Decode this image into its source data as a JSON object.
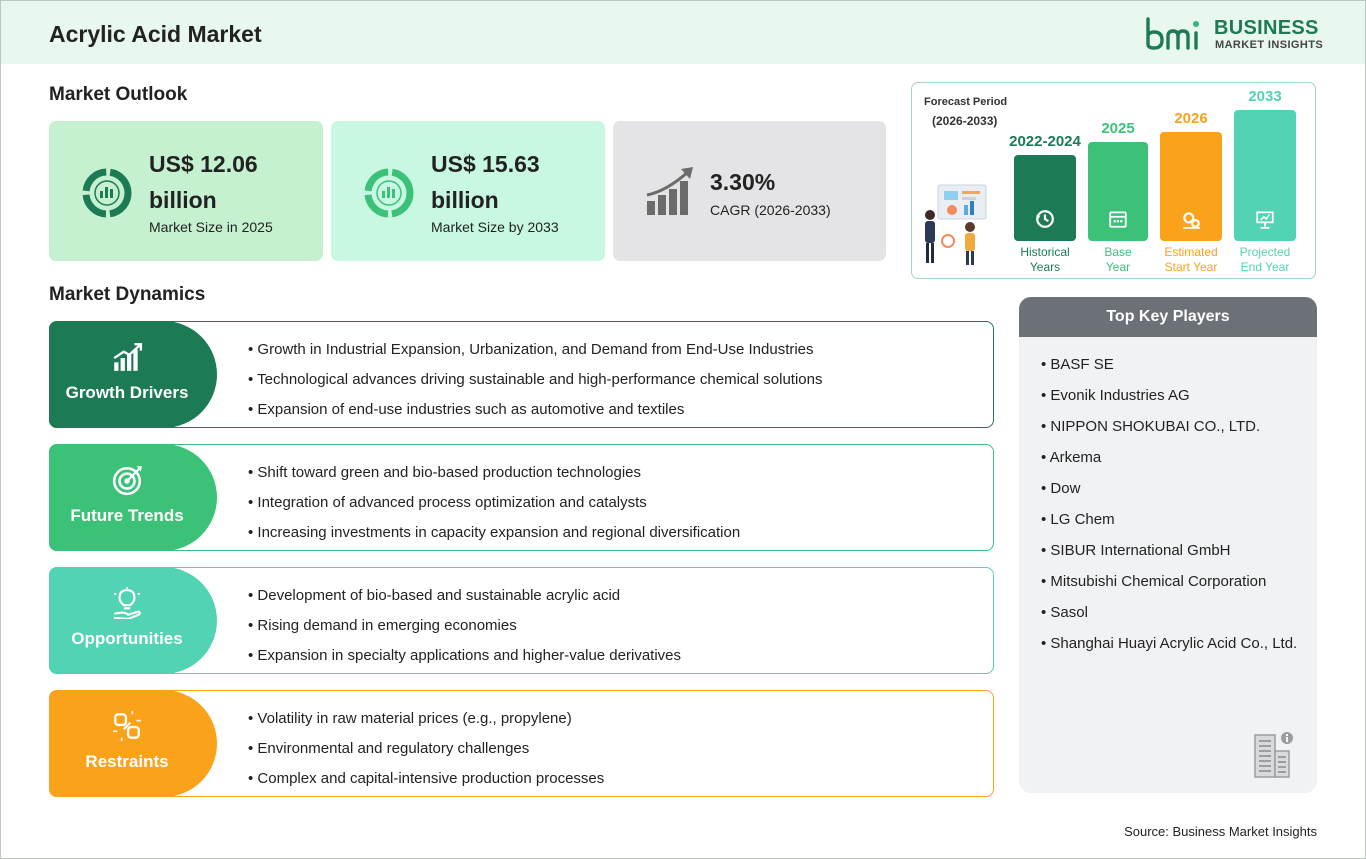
{
  "header": {
    "title": "Acrylic Acid Market",
    "logo_icon": "bmi-logo-icon",
    "logo_line1": "BUSINESS",
    "logo_line2": "MARKET INSIGHTS"
  },
  "outlook": {
    "title": "Market Outlook",
    "cards": [
      {
        "value_line1": "US$ 12.06",
        "value_line2": "billion",
        "label": "Market Size in 2025",
        "icon": "donut-chart-icon",
        "bg": "#c6f1d0"
      },
      {
        "value_line1": "US$ 15.63",
        "value_line2": "billion",
        "label": "Market Size by 2033",
        "icon": "donut-chart-icon",
        "bg": "#c8f8e1"
      },
      {
        "value_line1": "3.30%",
        "label": "CAGR (2026-2033)",
        "icon": "growth-bar-chart-icon",
        "bg": "#e4e4e6"
      }
    ]
  },
  "forecast": {
    "title": "Forecast Period",
    "subtitle": "(2026-2033)",
    "periods": [
      {
        "year": "2022-2024",
        "label_line1": "Historical",
        "label_line2": "Years",
        "color": "#1c7a55",
        "icon": "history-clock-icon"
      },
      {
        "year": "2025",
        "label_line1": "Base",
        "label_line2": "Year",
        "color": "#3cc278",
        "icon": "calendar-icon"
      },
      {
        "year": "2026",
        "label_line1": "Estimated",
        "label_line2": "Start Year",
        "color": "#fba21b",
        "icon": "gears-icon"
      },
      {
        "year": "2033",
        "label_line1": "Projected",
        "label_line2": "End Year",
        "color": "#52d3b3",
        "icon": "presentation-icon"
      }
    ]
  },
  "dynamics": {
    "title": "Market Dynamics",
    "sections": [
      {
        "name": "Growth Drivers",
        "color": "#1c7a55",
        "icon": "growth-chart-icon",
        "items": [
          "Growth in Industrial Expansion, Urbanization, and Demand from End-Use Industries",
          "Technological advances driving sustainable and high-performance chemical solutions",
          "Expansion of end-use industries such as automotive and textiles"
        ]
      },
      {
        "name": "Future Trends",
        "color": "#3cc278",
        "icon": "target-icon",
        "items": [
          "Shift toward green and bio-based production technologies",
          "Integration of advanced process optimization and catalysts",
          "Increasing investments in capacity expansion and regional diversification"
        ]
      },
      {
        "name": "Opportunities",
        "color": "#52d3b3",
        "icon": "lightbulb-hand-icon",
        "items": [
          "Development of bio-based and sustainable acrylic acid",
          "Rising demand in emerging economies",
          "Expansion in specialty applications and higher-value derivatives"
        ]
      },
      {
        "name": "Restraints",
        "color": "#fba21b",
        "icon": "broken-chain-icon",
        "items": [
          "Volatility in raw material prices (e.g., propylene)",
          "Environmental and regulatory challenges",
          "Complex and capital-intensive production processes"
        ]
      }
    ]
  },
  "players": {
    "title": "Top Key Players",
    "items": [
      "BASF SE",
      "Evonik Industries AG",
      "NIPPON SHOKUBAI CO., LTD.",
      "Arkema",
      "Dow",
      "LG Chem",
      "SIBUR International GmbH",
      "Mitsubishi Chemical Corporation",
      "Sasol",
      "Shanghai Huayi Acrylic Acid Co., Ltd."
    ],
    "icon": "office-building-icon"
  },
  "source": "Source: Business Market Insights"
}
